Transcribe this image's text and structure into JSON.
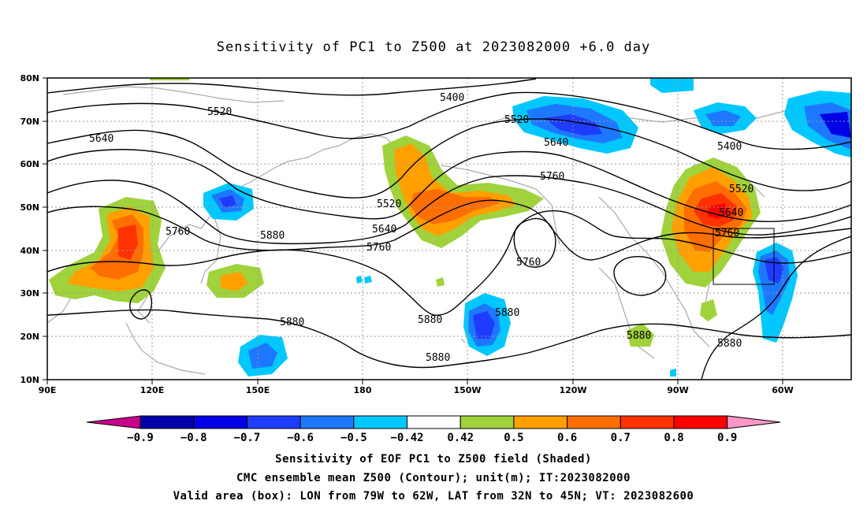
{
  "title": "Sensitivity of PC1 to Z500 at 2023082000 +6.0 day",
  "map": {
    "lon_ticks": [
      "90E",
      "120E",
      "150E",
      "180",
      "150W",
      "120W",
      "90W",
      "60W"
    ],
    "lat_ticks": [
      "80N",
      "70N",
      "60N",
      "50N",
      "40N",
      "30N",
      "20N",
      "10N"
    ],
    "valid_box": {
      "lon_from": "79W",
      "lon_to": "62W",
      "lat_from": "32N",
      "lat_to": "45N"
    }
  },
  "contours": {
    "labels": [
      {
        "text": "5400"
      },
      {
        "text": "5400"
      },
      {
        "text": "5520"
      },
      {
        "text": "5520"
      },
      {
        "text": "5520"
      },
      {
        "text": "5520"
      },
      {
        "text": "5640"
      },
      {
        "text": "5640"
      },
      {
        "text": "5640"
      },
      {
        "text": "5640"
      },
      {
        "text": "5760"
      },
      {
        "text": "5760"
      },
      {
        "text": "5760"
      },
      {
        "text": "5760"
      },
      {
        "text": "5760"
      },
      {
        "text": "5880"
      },
      {
        "text": "5880"
      },
      {
        "text": "5880"
      },
      {
        "text": "5880"
      },
      {
        "text": "5880"
      },
      {
        "text": "5880"
      },
      {
        "text": "5880"
      }
    ]
  },
  "colorbar": {
    "labels": [
      "-0.9",
      "-0.8",
      "-0.7",
      "-0.6",
      "-0.5",
      "-0.42",
      "0.42",
      "0.5",
      "0.6",
      "0.7",
      "0.8",
      "0.9"
    ],
    "colors": [
      "#c8008c",
      "#0000a8",
      "#0000e6",
      "#1e3cff",
      "#1e78ff",
      "#00c8ff",
      "#ffffff",
      "#a0d23c",
      "#ffa000",
      "#ff6e00",
      "#ff3200",
      "#ff0000",
      "#ff96c8"
    ]
  },
  "captions": {
    "line1": "Sensitivity of EOF PC1 to Z500 field (Shaded)",
    "line2": "CMC ensemble mean Z500 (Contour); unit(m); IT:2023082000",
    "line3": "Valid area (box): LON from 79W to 62W, LAT from 32N to 45N; VT: 2023082600"
  }
}
